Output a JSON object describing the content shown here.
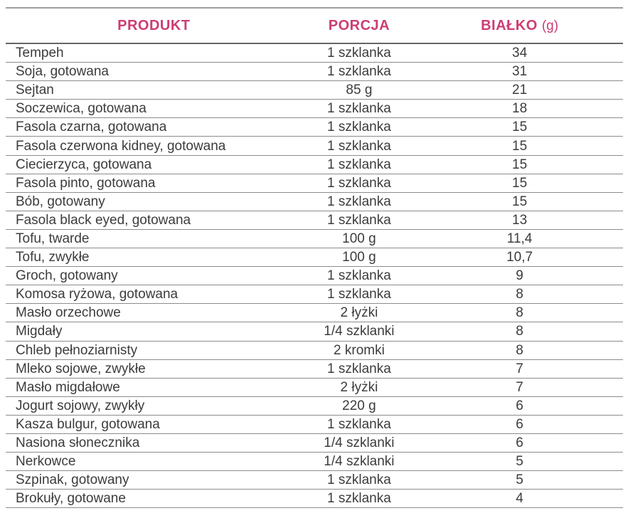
{
  "colors": {
    "accent": "#cc3d74",
    "text": "#3c3c3c",
    "line": "#8c8c8c",
    "line_top": "#9e9e9e",
    "line_header": "#666666",
    "background": "#ffffff"
  },
  "table": {
    "columns": [
      {
        "key": "produkt",
        "label": "PRODUKT",
        "align": "left"
      },
      {
        "key": "porcja",
        "label": "PORCJA",
        "align": "center"
      },
      {
        "key": "bialko",
        "label": "BIAŁKO",
        "unit": "(g)",
        "align": "center"
      }
    ],
    "rows": [
      {
        "produkt": "Tempeh",
        "porcja": "1 szklanka",
        "bialko": "34"
      },
      {
        "produkt": "Soja, gotowana",
        "porcja": "1 szklanka",
        "bialko": "31"
      },
      {
        "produkt": "Sejtan",
        "porcja": "85 g",
        "bialko": "21"
      },
      {
        "produkt": "Soczewica, gotowana",
        "porcja": "1 szklanka",
        "bialko": "18"
      },
      {
        "produkt": "Fasola czarna, gotowana",
        "porcja": "1 szklanka",
        "bialko": "15"
      },
      {
        "produkt": "Fasola czerwona kidney, gotowana",
        "porcja": "1 szklanka",
        "bialko": "15"
      },
      {
        "produkt": "Ciecierzyca, gotowana",
        "porcja": "1 szklanka",
        "bialko": "15"
      },
      {
        "produkt": "Fasola pinto, gotowana",
        "porcja": "1 szklanka",
        "bialko": "15"
      },
      {
        "produkt": "Bób, gotowany",
        "porcja": "1 szklanka",
        "bialko": "15"
      },
      {
        "produkt": "Fasola black eyed, gotowana",
        "porcja": "1 szklanka",
        "bialko": "13"
      },
      {
        "produkt": "Tofu, twarde",
        "porcja": "100 g",
        "bialko": "11,4"
      },
      {
        "produkt": "Tofu, zwykłe",
        "porcja": "100 g",
        "bialko": "10,7"
      },
      {
        "produkt": "Groch, gotowany",
        "porcja": "1 szklanka",
        "bialko": "9"
      },
      {
        "produkt": "Komosa ryżowa, gotowana",
        "porcja": "1 szklanka",
        "bialko": "8"
      },
      {
        "produkt": "Masło orzechowe",
        "porcja": "2 łyżki",
        "bialko": "8"
      },
      {
        "produkt": "Migdały",
        "porcja": "1/4 szklanki",
        "bialko": "8"
      },
      {
        "produkt": "Chleb pełnoziarnisty",
        "porcja": "2 kromki",
        "bialko": "8"
      },
      {
        "produkt": "Mleko sojowe, zwykłe",
        "porcja": "1 szklanka",
        "bialko": "7"
      },
      {
        "produkt": "Masło migdałowe",
        "porcja": "2 łyżki",
        "bialko": "7"
      },
      {
        "produkt": "Jogurt sojowy, zwykły",
        "porcja": "220 g",
        "bialko": "6"
      },
      {
        "produkt": "Kasza bulgur, gotowana",
        "porcja": "1 szklanka",
        "bialko": "6"
      },
      {
        "produkt": "Nasiona słonecznika",
        "porcja": "1/4 szklanki",
        "bialko": "6"
      },
      {
        "produkt": "Nerkowce",
        "porcja": "1/4 szklanki",
        "bialko": "5"
      },
      {
        "produkt": "Szpinak, gotowany",
        "porcja": "1 szklanka",
        "bialko": "5"
      },
      {
        "produkt": "Brokuły, gotowane",
        "porcja": "1 szklanka",
        "bialko": "4"
      }
    ]
  },
  "chart_data": {
    "type": "table",
    "title": "",
    "columns": [
      "PRODUKT",
      "PORCJA",
      "BIAŁKO (g)"
    ],
    "rows": [
      [
        "Tempeh",
        "1 szklanka",
        34
      ],
      [
        "Soja, gotowana",
        "1 szklanka",
        31
      ],
      [
        "Sejtan",
        "85 g",
        21
      ],
      [
        "Soczewica, gotowana",
        "1 szklanka",
        18
      ],
      [
        "Fasola czarna, gotowana",
        "1 szklanka",
        15
      ],
      [
        "Fasola czerwona kidney, gotowana",
        "1 szklanka",
        15
      ],
      [
        "Ciecierzyca, gotowana",
        "1 szklanka",
        15
      ],
      [
        "Fasola pinto, gotowana",
        "1 szklanka",
        15
      ],
      [
        "Bób, gotowany",
        "1 szklanka",
        15
      ],
      [
        "Fasola black eyed, gotowana",
        "1 szklanka",
        13
      ],
      [
        "Tofu, twarde",
        "100 g",
        11.4
      ],
      [
        "Tofu, zwykłe",
        "100 g",
        10.7
      ],
      [
        "Groch, gotowany",
        "1 szklanka",
        9
      ],
      [
        "Komosa ryżowa, gotowana",
        "1 szklanka",
        8
      ],
      [
        "Masło orzechowe",
        "2 łyżki",
        8
      ],
      [
        "Migdały",
        "1/4 szklanki",
        8
      ],
      [
        "Chleb pełnoziarnisty",
        "2 kromki",
        8
      ],
      [
        "Mleko sojowe, zwykłe",
        "1 szklanka",
        7
      ],
      [
        "Masło migdałowe",
        "2 łyżki",
        7
      ],
      [
        "Jogurt sojowy, zwykły",
        "220 g",
        6
      ],
      [
        "Kasza bulgur, gotowana",
        "1 szklanka",
        6
      ],
      [
        "Nasiona słonecznika",
        "1/4 szklanki",
        6
      ],
      [
        "Nerkowce",
        "1/4 szklanki",
        5
      ],
      [
        "Szpinak, gotowany",
        "1 szklanka",
        5
      ],
      [
        "Brokuły, gotowane",
        "1 szklanka",
        4
      ]
    ]
  }
}
